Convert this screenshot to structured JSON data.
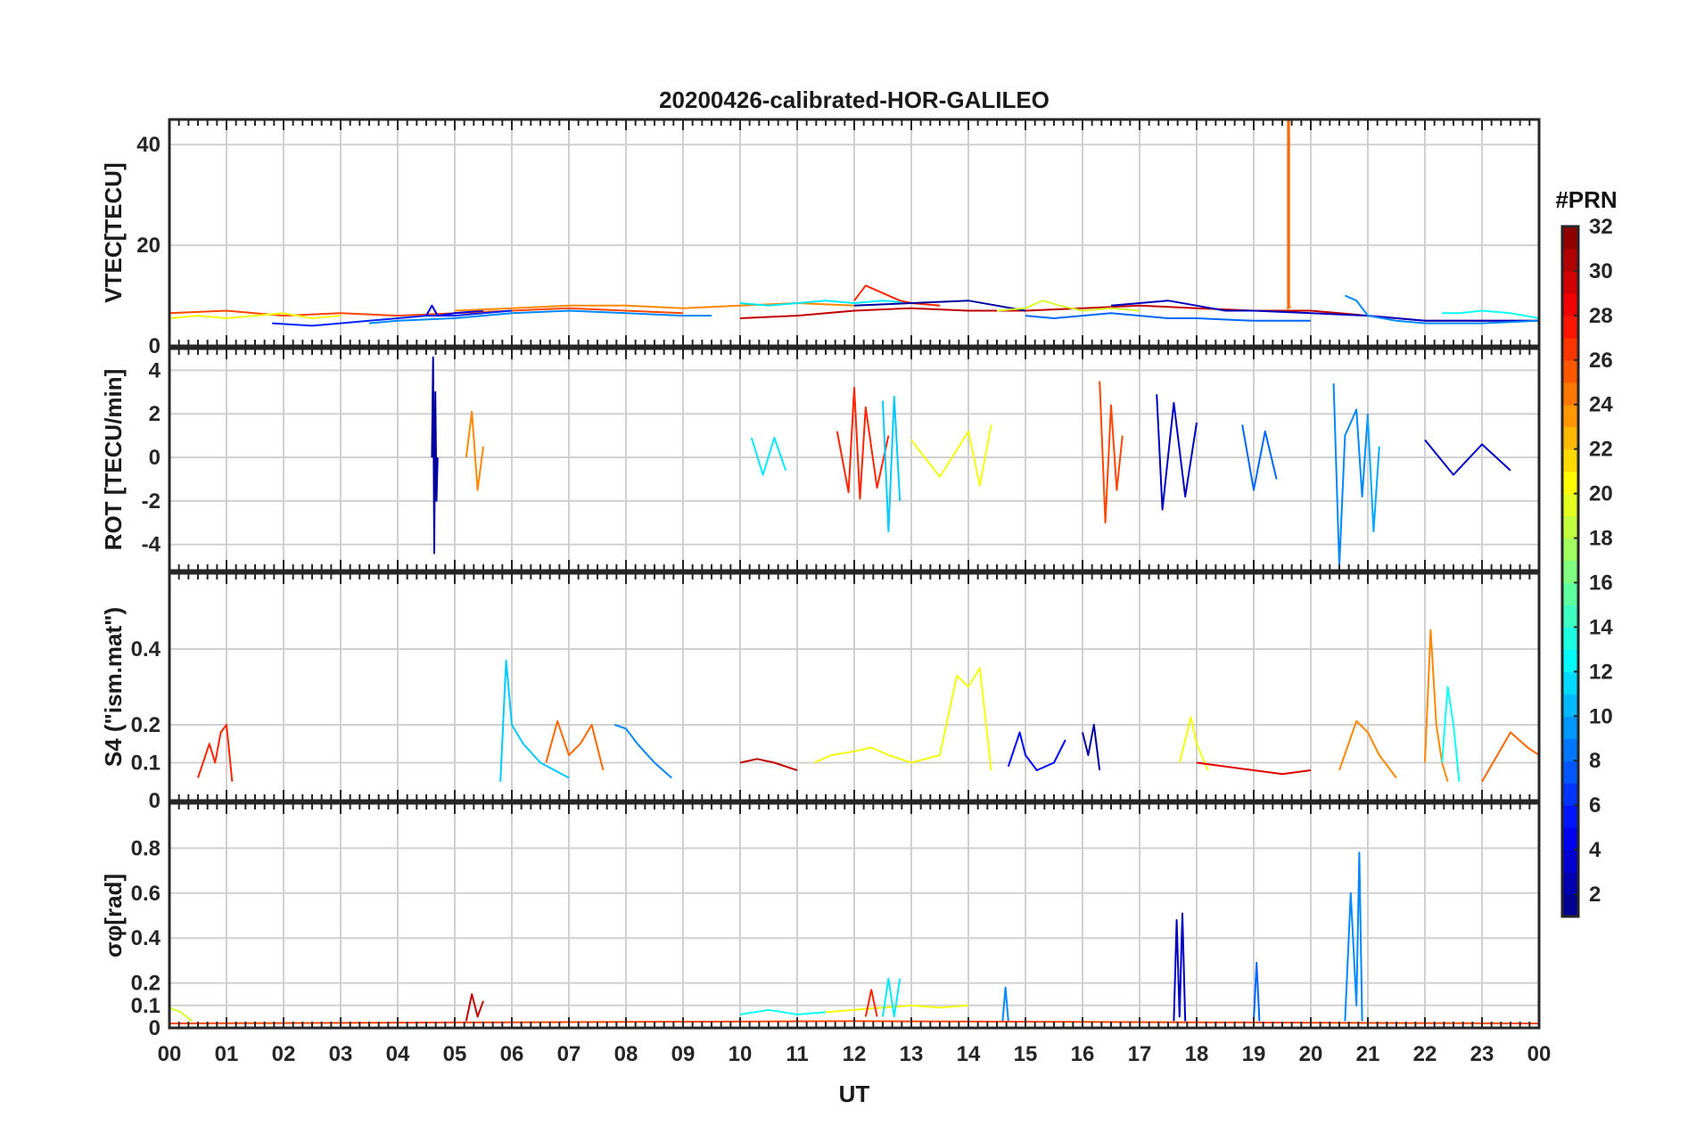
{
  "figure_title": "20200426-calibrated-HOR-GALILEO",
  "x_axis_label": "UT",
  "x_tick_labels": [
    "00",
    "01",
    "02",
    "03",
    "04",
    "05",
    "06",
    "07",
    "08",
    "09",
    "10",
    "11",
    "12",
    "13",
    "14",
    "15",
    "16",
    "17",
    "18",
    "19",
    "20",
    "21",
    "22",
    "23",
    "00"
  ],
  "colorbar": {
    "title": "#PRN",
    "range": [
      1,
      32
    ],
    "tick_values": [
      2,
      4,
      6,
      8,
      10,
      12,
      14,
      16,
      18,
      20,
      22,
      24,
      26,
      28,
      30,
      32
    ],
    "tick_labels": [
      "2",
      "4",
      "6",
      "8",
      "10",
      "12",
      "14",
      "16",
      "18",
      "20",
      "22",
      "24",
      "26",
      "28",
      "30",
      "32"
    ],
    "colormap": "jet"
  },
  "chart_data": [
    {
      "type": "line",
      "panel": "vtec",
      "ylabel": "VTEC[TECU]",
      "xlim": [
        0,
        24
      ],
      "ylim": [
        0,
        45
      ],
      "yticks": [
        0,
        20,
        40
      ],
      "ytick_labels": [
        "0",
        "20",
        "40"
      ],
      "grid": true,
      "series": [
        {
          "prn": 26,
          "x": [
            0,
            1,
            2,
            3,
            4,
            5,
            6,
            7,
            8,
            9
          ],
          "y": [
            6.5,
            7,
            6,
            6.5,
            6,
            6.5,
            7,
            7.5,
            7,
            6.5
          ]
        },
        {
          "prn": 20,
          "x": [
            0,
            0.5,
            1,
            1.5,
            2,
            2.5,
            3
          ],
          "y": [
            5.5,
            6,
            5.5,
            6,
            6.5,
            5.5,
            6
          ]
        },
        {
          "prn": 6,
          "x": [
            1.8,
            2.5,
            3,
            3.5,
            4,
            4.5,
            5,
            5.5,
            6
          ],
          "y": [
            4.5,
            4,
            4.5,
            5,
            5.5,
            6,
            6,
            6.5,
            7
          ]
        },
        {
          "prn": 9,
          "x": [
            3.5,
            4,
            5,
            6,
            7,
            8,
            9,
            9.5
          ],
          "y": [
            4.5,
            5,
            5.5,
            6.5,
            7,
            6.5,
            6,
            6
          ]
        },
        {
          "prn": 4,
          "x": [
            4.5,
            4.6,
            4.7,
            5,
            5.5
          ],
          "y": [
            6,
            8,
            6,
            6.5,
            7
          ]
        },
        {
          "prn": 24,
          "x": [
            5,
            6,
            7,
            8,
            9,
            10,
            11,
            12
          ],
          "y": [
            7,
            7.5,
            8,
            8,
            7.5,
            8,
            8.5,
            8
          ]
        },
        {
          "prn": 30,
          "x": [
            10,
            11,
            12,
            13,
            14,
            15,
            16,
            17,
            18,
            19,
            20,
            21,
            22,
            23,
            24
          ],
          "y": [
            5.5,
            6,
            7,
            7.5,
            7,
            7,
            7.5,
            8,
            7.5,
            7,
            7,
            6,
            5,
            5,
            5
          ]
        },
        {
          "prn": 12,
          "x": [
            10,
            10.5,
            11,
            11.5,
            12,
            12.5,
            13
          ],
          "y": [
            8.5,
            8,
            8.5,
            9,
            8.5,
            9,
            8.5
          ]
        },
        {
          "prn": 27,
          "x": [
            12,
            12.2,
            12.4,
            12.6,
            12.8,
            13,
            13.5
          ],
          "y": [
            9,
            12,
            11,
            10,
            9,
            8.5,
            8
          ]
        },
        {
          "prn": 2,
          "x": [
            12,
            13,
            14,
            14.5,
            15
          ],
          "y": [
            8,
            8.5,
            9,
            8,
            7
          ]
        },
        {
          "prn": 19,
          "x": [
            14.5,
            15,
            15.3,
            15.6,
            16,
            16.5,
            17
          ],
          "y": [
            7,
            7.5,
            9,
            8,
            7,
            7.5,
            7
          ]
        },
        {
          "prn": 8,
          "x": [
            15,
            15.5,
            16,
            16.5,
            17,
            17.5,
            18,
            19,
            20
          ],
          "y": [
            6,
            5.5,
            6,
            6.5,
            6,
            5.5,
            5.5,
            5,
            5
          ]
        },
        {
          "prn": 3,
          "x": [
            16.5,
            17,
            17.5,
            18,
            18.5,
            19,
            20,
            21,
            22,
            23,
            24
          ],
          "y": [
            8,
            8.5,
            9,
            8,
            7,
            7,
            6.5,
            6,
            5,
            5,
            5
          ]
        },
        {
          "prn": 25,
          "x": [
            19.6,
            19.6,
            19.62,
            19.62,
            19.64
          ],
          "y": [
            7,
            45,
            45,
            8,
            7.5
          ]
        },
        {
          "prn": 9,
          "x": [
            20.6,
            20.8,
            21,
            21.5,
            22,
            23,
            24
          ],
          "y": [
            10,
            9,
            6,
            5,
            4.5,
            4.5,
            5
          ]
        },
        {
          "prn": 13,
          "x": [
            22.3,
            22.6,
            23,
            23.5,
            24
          ],
          "y": [
            6.5,
            6.5,
            7,
            6.5,
            5.5
          ]
        }
      ]
    },
    {
      "type": "line",
      "panel": "rot",
      "ylabel": "ROT [TECU/min]",
      "xlim": [
        0,
        24
      ],
      "ylim": [
        -5.2,
        5
      ],
      "yticks": [
        -4,
        -2,
        0,
        2,
        4
      ],
      "ytick_labels": [
        "-4",
        "-2",
        "0",
        "2",
        "4"
      ],
      "grid": true,
      "series": [
        {
          "prn": 2,
          "x": [
            4.6,
            4.62,
            4.64,
            4.66,
            4.68,
            4.7
          ],
          "y": [
            0,
            4.6,
            -4.4,
            3,
            -2,
            0
          ]
        },
        {
          "prn": 24,
          "x": [
            5.2,
            5.3,
            5.4,
            5.5
          ],
          "y": [
            0,
            2.1,
            -1.5,
            0.5
          ]
        },
        {
          "prn": 12,
          "x": [
            10.2,
            10.4,
            10.6,
            10.8
          ],
          "y": [
            0.9,
            -0.8,
            0.9,
            -0.6
          ]
        },
        {
          "prn": 27,
          "x": [
            11.7,
            11.9,
            12,
            12.1,
            12.2,
            12.4,
            12.6
          ],
          "y": [
            1.2,
            -1.6,
            3.2,
            -1.9,
            2.3,
            -1.4,
            1
          ]
        },
        {
          "prn": 11,
          "x": [
            12.5,
            12.6,
            12.7,
            12.8
          ],
          "y": [
            2.6,
            -3.4,
            2.8,
            -2
          ]
        },
        {
          "prn": 20,
          "x": [
            13,
            13.5,
            14,
            14.2,
            14.4
          ],
          "y": [
            0.8,
            -0.9,
            1.2,
            -1.3,
            1.5
          ]
        },
        {
          "prn": 26,
          "x": [
            16.3,
            16.4,
            16.5,
            16.6,
            16.7
          ],
          "y": [
            3.5,
            -3,
            2.4,
            -1.5,
            1
          ]
        },
        {
          "prn": 3,
          "x": [
            17.3,
            17.4,
            17.6,
            17.8,
            18
          ],
          "y": [
            2.9,
            -2.4,
            2.5,
            -1.8,
            1.6
          ]
        },
        {
          "prn": 8,
          "x": [
            18.8,
            19,
            19.2,
            19.4
          ],
          "y": [
            1.5,
            -1.5,
            1.2,
            -1
          ]
        },
        {
          "prn": 9,
          "x": [
            20.4,
            20.5,
            20.6,
            20.8,
            20.9,
            21
          ],
          "y": [
            3.4,
            -5,
            1,
            2.2,
            -1.8,
            2
          ]
        },
        {
          "prn": 10,
          "x": [
            21,
            21.1,
            21.2
          ],
          "y": [
            1.8,
            -3.4,
            0.5
          ]
        },
        {
          "prn": 3,
          "x": [
            22,
            22.5,
            23,
            23.5
          ],
          "y": [
            0.8,
            -0.8,
            0.6,
            -0.6
          ]
        }
      ]
    },
    {
      "type": "line",
      "panel": "s4",
      "ylabel": "S4 (\"ism.mat\")",
      "xlim": [
        0,
        24
      ],
      "ylim": [
        0,
        0.6
      ],
      "yticks": [
        0,
        0.1,
        0.2,
        0.4
      ],
      "ytick_labels": [
        "0",
        "0.1",
        "0.2",
        "0.4"
      ],
      "grid": true,
      "series": [
        {
          "prn": 27,
          "x": [
            0.5,
            0.7,
            0.8,
            0.9,
            1,
            1.1
          ],
          "y": [
            0.06,
            0.15,
            0.1,
            0.18,
            0.2,
            0.05
          ]
        },
        {
          "prn": 11,
          "x": [
            5.8,
            5.9,
            6,
            6.2,
            6.5,
            7
          ],
          "y": [
            0.05,
            0.37,
            0.2,
            0.15,
            0.1,
            0.06
          ]
        },
        {
          "prn": 25,
          "x": [
            6.6,
            6.8,
            7,
            7.2,
            7.4,
            7.6
          ],
          "y": [
            0.1,
            0.21,
            0.12,
            0.15,
            0.2,
            0.08
          ]
        },
        {
          "prn": 9,
          "x": [
            7.8,
            8,
            8.2,
            8.5,
            8.8
          ],
          "y": [
            0.2,
            0.19,
            0.15,
            0.1,
            0.06
          ]
        },
        {
          "prn": 30,
          "x": [
            10,
            10.3,
            10.6,
            11
          ],
          "y": [
            0.1,
            0.11,
            0.1,
            0.08
          ]
        },
        {
          "prn": 20,
          "x": [
            11.3,
            11.6,
            12,
            12.3,
            12.6,
            13,
            13.5,
            13.8,
            14,
            14.2,
            14.4
          ],
          "y": [
            0.1,
            0.12,
            0.13,
            0.14,
            0.12,
            0.1,
            0.12,
            0.33,
            0.3,
            0.35,
            0.08
          ]
        },
        {
          "prn": 5,
          "x": [
            14.7,
            14.9,
            15,
            15.2,
            15.5,
            15.7
          ],
          "y": [
            0.09,
            0.18,
            0.12,
            0.08,
            0.1,
            0.16
          ]
        },
        {
          "prn": 2,
          "x": [
            16,
            16.1,
            16.2,
            16.3
          ],
          "y": [
            0.18,
            0.12,
            0.2,
            0.08
          ]
        },
        {
          "prn": 20,
          "x": [
            17.7,
            17.9,
            18,
            18.2
          ],
          "y": [
            0.1,
            0.22,
            0.15,
            0.08
          ]
        },
        {
          "prn": 29,
          "x": [
            18,
            18.5,
            19,
            19.5,
            20
          ],
          "y": [
            0.1,
            0.09,
            0.08,
            0.07,
            0.08
          ]
        },
        {
          "prn": 24,
          "x": [
            20.5,
            20.8,
            21,
            21.2,
            21.5
          ],
          "y": [
            0.08,
            0.21,
            0.18,
            0.12,
            0.06
          ]
        },
        {
          "prn": 24,
          "x": [
            22,
            22.1,
            22.2,
            22.3,
            22.4
          ],
          "y": [
            0.1,
            0.45,
            0.2,
            0.1,
            0.05
          ]
        },
        {
          "prn": 13,
          "x": [
            22.3,
            22.4,
            22.5,
            22.6
          ],
          "y": [
            0.1,
            0.3,
            0.2,
            0.05
          ]
        },
        {
          "prn": 25,
          "x": [
            23,
            23.5,
            23.8,
            24
          ],
          "y": [
            0.05,
            0.18,
            0.14,
            0.12
          ]
        }
      ]
    },
    {
      "type": "line",
      "panel": "sigma_phi",
      "ylabel": "σφ[rad]",
      "xlim": [
        0,
        24
      ],
      "ylim": [
        0,
        1
      ],
      "yticks": [
        0,
        0.1,
        0.2,
        0.4,
        0.6,
        0.8
      ],
      "ytick_labels": [
        "0",
        "0.1",
        "0.2",
        "0.4",
        "0.6",
        "0.8"
      ],
      "grid": true,
      "series": [
        {
          "prn": 19,
          "x": [
            0,
            0.2,
            0.4
          ],
          "y": [
            0.09,
            0.07,
            0.03
          ]
        },
        {
          "prn": 30,
          "x": [
            5.2,
            5.3,
            5.4,
            5.5
          ],
          "y": [
            0.03,
            0.15,
            0.05,
            0.12
          ]
        },
        {
          "prn": 13,
          "x": [
            10,
            10.5,
            11,
            11.5
          ],
          "y": [
            0.06,
            0.08,
            0.06,
            0.07
          ]
        },
        {
          "prn": 20,
          "x": [
            11.5,
            12,
            12.5,
            13,
            13.5,
            14
          ],
          "y": [
            0.07,
            0.08,
            0.09,
            0.1,
            0.09,
            0.1
          ]
        },
        {
          "prn": 12,
          "x": [
            12.5,
            12.6,
            12.7,
            12.8
          ],
          "y": [
            0.05,
            0.22,
            0.05,
            0.22
          ]
        },
        {
          "prn": 27,
          "x": [
            12.2,
            12.3,
            12.4
          ],
          "y": [
            0.05,
            0.17,
            0.05
          ]
        },
        {
          "prn": 9,
          "x": [
            14.6,
            14.65,
            14.7
          ],
          "y": [
            0.03,
            0.18,
            0.03
          ]
        },
        {
          "prn": 3,
          "x": [
            17.6,
            17.65,
            17.7,
            17.75,
            17.8
          ],
          "y": [
            0.03,
            0.48,
            0.05,
            0.51,
            0.03
          ]
        },
        {
          "prn": 8,
          "x": [
            19,
            19.05,
            19.1
          ],
          "y": [
            0.03,
            0.29,
            0.03
          ]
        },
        {
          "prn": 9,
          "x": [
            20.6,
            20.7,
            20.8,
            20.85,
            20.9
          ],
          "y": [
            0.03,
            0.6,
            0.1,
            0.78,
            0.03
          ]
        },
        {
          "prn": 26,
          "x": [
            0,
            6,
            12,
            18,
            24
          ],
          "y": [
            0.02,
            0.025,
            0.03,
            0.025,
            0.02
          ]
        }
      ]
    }
  ]
}
